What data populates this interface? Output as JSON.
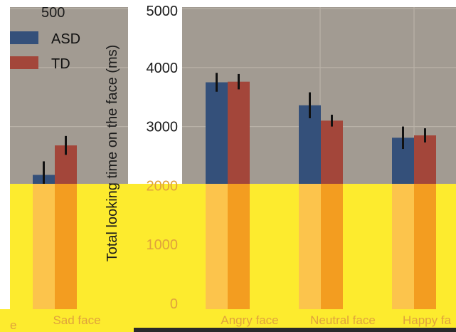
{
  "chart_data": {
    "type": "bar",
    "ylabel": "Total looking time on the face (ms)",
    "ylim": [
      0,
      5000
    ],
    "yticks": [
      0,
      1000,
      2000,
      3000,
      4000,
      5000
    ],
    "ytick_labels": [
      "0",
      "1000",
      "2000",
      "3000",
      "4000",
      "5000"
    ],
    "categories": [
      "Sad face",
      "Angry face",
      "Neutral face",
      "Happy face"
    ],
    "category_labels_shown": [
      "Sad face",
      "Angry face",
      "Neutral face",
      "Happy fa"
    ],
    "series": [
      {
        "name": "ASD",
        "color": "#34507a",
        "values": [
          2180,
          3750,
          3360,
          2810
        ],
        "err": [
          230,
          160,
          220,
          190
        ]
      },
      {
        "name": "TD",
        "color": "#a3463a",
        "values": [
          2680,
          3760,
          3100,
          2850
        ],
        "err": [
          160,
          130,
          100,
          120
        ]
      }
    ],
    "legend": {
      "placement": "top-left",
      "entries": [
        "ASD",
        "TD"
      ]
    },
    "partial_labels": {
      "left_tick": "500",
      "left_category": "e"
    },
    "grid": true,
    "occlusion_colors": {
      "yellow": "#fdeb2e",
      "orange": "#f39d20",
      "light_orange": "#fcc44c",
      "dark": "#2a2a2a"
    }
  }
}
